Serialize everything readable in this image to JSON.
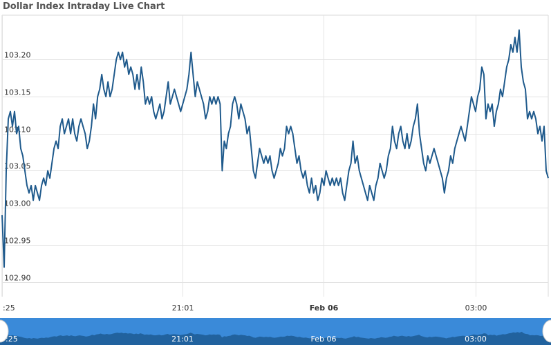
{
  "page": {
    "title": "Dollar Index Intraday Live Chart"
  },
  "chart_data": {
    "type": "line",
    "title": "Dollar Index Intraday Live Chart",
    "xlabel": "",
    "ylabel": "",
    "ylim": [
      102.88,
      103.26
    ],
    "grid": true,
    "legend": "none",
    "y_ticks": [
      "102.90",
      "102.95",
      "103.00",
      "103.05",
      "103.10",
      "103.15",
      "103.20"
    ],
    "x_ticks": [
      {
        "label": ":25",
        "bold": false
      },
      {
        "label": "21:01",
        "bold": false
      },
      {
        "label": "Feb 06",
        "bold": true
      },
      {
        "label": "03:00",
        "bold": false
      }
    ],
    "navigator_labels": [
      ":25",
      "21:01",
      "Feb 06",
      "03:00"
    ],
    "line_color": "#1f5a8c",
    "navigator_color": "#3a8ad9",
    "series": [
      {
        "values": [
          102.99,
          102.92,
          103.05,
          103.12,
          103.13,
          103.11,
          103.13,
          103.1,
          103.11,
          103.08,
          103.07,
          103.05,
          103.03,
          103.02,
          103.03,
          103.01,
          103.03,
          103.02,
          103.01,
          103.03,
          103.04,
          103.03,
          103.05,
          103.04,
          103.06,
          103.08,
          103.09,
          103.08,
          103.11,
          103.12,
          103.1,
          103.11,
          103.12,
          103.1,
          103.12,
          103.1,
          103.09,
          103.11,
          103.12,
          103.11,
          103.1,
          103.08,
          103.09,
          103.11,
          103.14,
          103.12,
          103.15,
          103.16,
          103.18,
          103.16,
          103.15,
          103.17,
          103.15,
          103.16,
          103.18,
          103.2,
          103.21,
          103.2,
          103.21,
          103.19,
          103.2,
          103.18,
          103.19,
          103.18,
          103.16,
          103.18,
          103.16,
          103.19,
          103.17,
          103.14,
          103.15,
          103.14,
          103.15,
          103.13,
          103.12,
          103.13,
          103.14,
          103.12,
          103.13,
          103.15,
          103.17,
          103.14,
          103.15,
          103.16,
          103.15,
          103.14,
          103.13,
          103.14,
          103.15,
          103.16,
          103.18,
          103.21,
          103.18,
          103.15,
          103.17,
          103.16,
          103.15,
          103.14,
          103.12,
          103.13,
          103.15,
          103.14,
          103.15,
          103.14,
          103.15,
          103.14,
          103.05,
          103.09,
          103.08,
          103.1,
          103.11,
          103.14,
          103.15,
          103.14,
          103.12,
          103.14,
          103.13,
          103.12,
          103.1,
          103.11,
          103.08,
          103.05,
          103.04,
          103.06,
          103.08,
          103.07,
          103.06,
          103.07,
          103.06,
          103.07,
          103.05,
          103.04,
          103.05,
          103.06,
          103.08,
          103.07,
          103.08,
          103.11,
          103.1,
          103.11,
          103.1,
          103.08,
          103.06,
          103.07,
          103.05,
          103.04,
          103.05,
          103.03,
          103.02,
          103.04,
          103.02,
          103.03,
          103.01,
          103.02,
          103.04,
          103.03,
          103.05,
          103.04,
          103.03,
          103.04,
          103.03,
          103.04,
          103.03,
          103.04,
          103.02,
          103.01,
          103.03,
          103.05,
          103.06,
          103.09,
          103.06,
          103.07,
          103.05,
          103.04,
          103.03,
          103.02,
          103.01,
          103.03,
          103.02,
          103.01,
          103.03,
          103.04,
          103.06,
          103.05,
          103.04,
          103.05,
          103.07,
          103.08,
          103.11,
          103.09,
          103.08,
          103.1,
          103.11,
          103.09,
          103.08,
          103.1,
          103.08,
          103.09,
          103.11,
          103.12,
          103.14,
          103.1,
          103.08,
          103.06,
          103.05,
          103.07,
          103.06,
          103.07,
          103.08,
          103.07,
          103.06,
          103.05,
          103.04,
          103.02,
          103.04,
          103.05,
          103.07,
          103.06,
          103.08,
          103.09,
          103.1,
          103.11,
          103.1,
          103.09,
          103.11,
          103.13,
          103.15,
          103.14,
          103.13,
          103.15,
          103.16,
          103.19,
          103.18,
          103.12,
          103.14,
          103.13,
          103.14,
          103.11,
          103.13,
          103.14,
          103.16,
          103.15,
          103.17,
          103.19,
          103.2,
          103.22,
          103.21,
          103.23,
          103.21,
          103.24,
          103.19,
          103.17,
          103.16,
          103.12,
          103.13,
          103.12,
          103.13,
          103.12,
          103.1,
          103.11,
          103.09,
          103.11,
          103.05,
          103.04
        ]
      }
    ]
  }
}
